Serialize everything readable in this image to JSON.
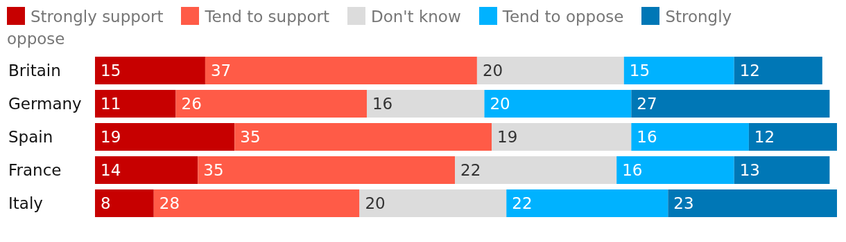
{
  "chart_data": {
    "type": "bar",
    "orientation": "horizontal",
    "stacked": true,
    "data_labels": true,
    "legend": "top",
    "xlim": [
      0,
      101
    ],
    "tick_labels": "y",
    "categories": [
      "Britain",
      "Germany",
      "Spain",
      "France",
      "Italy"
    ],
    "series": [
      {
        "name": "Strongly support",
        "color": "#c70000",
        "values": [
          15,
          11,
          19,
          14,
          8
        ]
      },
      {
        "name": "Tend to support",
        "color": "#ff5b47",
        "values": [
          37,
          26,
          35,
          35,
          28
        ]
      },
      {
        "name": "Don't know",
        "color": "#dcdcdc",
        "values": [
          20,
          16,
          19,
          22,
          20
        ]
      },
      {
        "name": "Tend to oppose",
        "color": "#00b2ff",
        "values": [
          15,
          20,
          16,
          16,
          22
        ]
      },
      {
        "name": "Strongly oppose",
        "color": "#0077b6",
        "values": [
          12,
          27,
          12,
          13,
          23
        ]
      }
    ]
  }
}
